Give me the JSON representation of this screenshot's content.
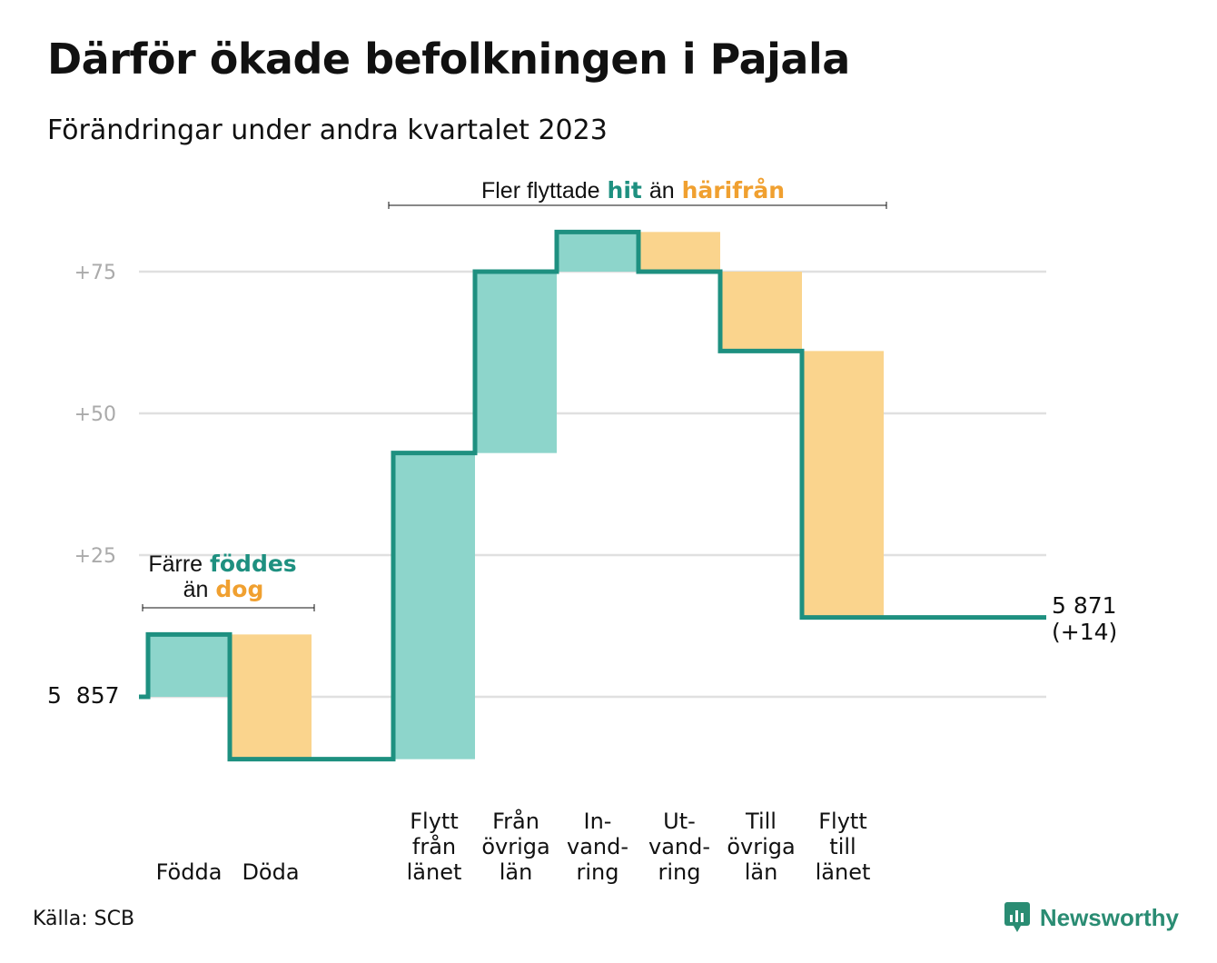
{
  "header": {
    "title": "Därför ökade befolkningen i Pajala",
    "subtitle": "Förändringar under andra kvartalet 2023"
  },
  "footer": {
    "source": "Källa: SCB",
    "brand": "Newsworthy"
  },
  "colors": {
    "increase_fill": "#8dd5cb",
    "decrease_fill": "#fad48d",
    "line": "#1e9080",
    "highlight_teal": "#1e9080",
    "highlight_orange": "#f0a030",
    "grid": "#e0e0e0",
    "tick_text": "#aaaaaa",
    "brand": "#2a8c73"
  },
  "annotations": {
    "births_group": {
      "prefix": "Färre",
      "teal_word": "föddes",
      "line2_prefix": "än",
      "orange_word": "dog"
    },
    "migration_group": {
      "prefix": "Fler flyttade",
      "teal_word": "hit",
      "middle": "än",
      "orange_word": "härifrån"
    }
  },
  "chart_data": {
    "type": "waterfall",
    "baseline_value": 5857,
    "start_label": "5  857",
    "end_label_line1": "5 871",
    "end_label_line2": "(+14)",
    "end_value": 5871,
    "ylim": [
      -15,
      90
    ],
    "yticks": [
      {
        "value": 0,
        "label": ""
      },
      {
        "value": 25,
        "label": "+25"
      },
      {
        "value": 50,
        "label": "+50"
      },
      {
        "value": 75,
        "label": "+75"
      }
    ],
    "grid": true,
    "steps": [
      {
        "label": [
          "Födda"
        ],
        "change": 11,
        "kind": "in"
      },
      {
        "label": [
          "Döda"
        ],
        "change": -22,
        "kind": "out"
      },
      {
        "label": [],
        "change": 0,
        "kind": "gap"
      },
      {
        "label": [
          "Flytt",
          "från",
          "länet"
        ],
        "change": 54,
        "kind": "in"
      },
      {
        "label": [
          "Från",
          "övriga",
          "län"
        ],
        "change": 32,
        "kind": "in"
      },
      {
        "label": [
          "In-",
          "vand-",
          "ring"
        ],
        "change": 7,
        "kind": "in"
      },
      {
        "label": [
          "Ut-",
          "vand-",
          "ring"
        ],
        "change": -7,
        "kind": "out"
      },
      {
        "label": [
          "Till",
          "övriga",
          "län"
        ],
        "change": -14,
        "kind": "out"
      },
      {
        "label": [
          "Flytt",
          "till",
          "länet"
        ],
        "change": -47,
        "kind": "out"
      }
    ]
  }
}
